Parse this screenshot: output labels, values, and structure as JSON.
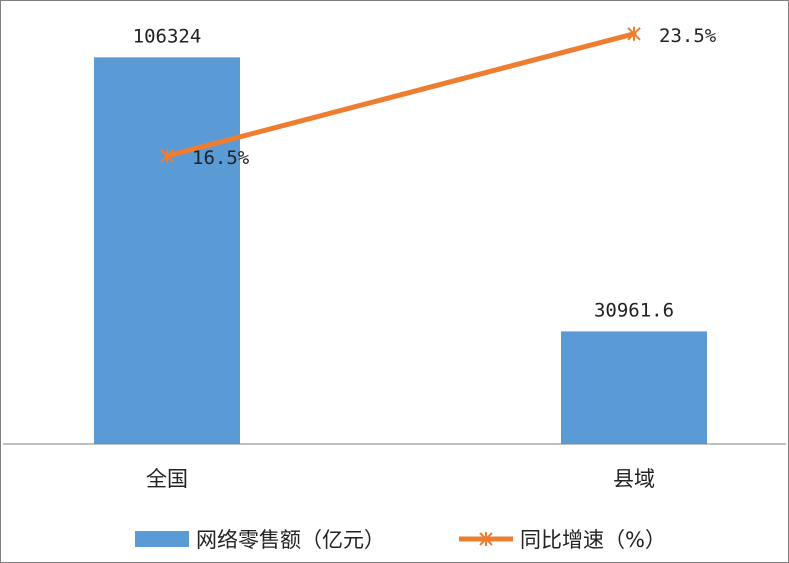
{
  "chart_data": {
    "type": "bar",
    "categories": [
      "全国",
      "县域"
    ],
    "series": [
      {
        "name": "网络零售额（亿元）",
        "kind": "bar",
        "axis": "primary",
        "values": [
          106324,
          30961.6
        ],
        "labels": [
          "106324",
          "30961.6"
        ],
        "color": "#5b9bd5"
      },
      {
        "name": "同比增速（%）",
        "kind": "line",
        "axis": "secondary",
        "values": [
          16.5,
          23.5
        ],
        "labels": [
          "16.5%",
          "23.5%"
        ],
        "color": "#ed7d31",
        "marker": "asterisk"
      }
    ],
    "title": "",
    "xlabel": "",
    "ylabel": "",
    "ylim": [
      0,
      120000
    ],
    "y2lim": [
      0,
      25
    ],
    "grid": false,
    "legend": "bottom"
  }
}
